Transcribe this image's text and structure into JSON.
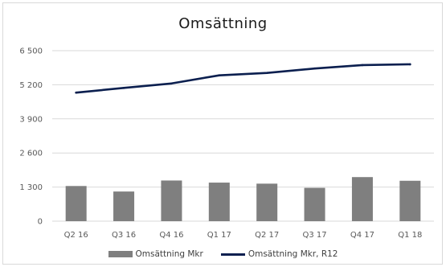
{
  "chart_data": {
    "type": "bar+line",
    "title": "Omsättning",
    "categories": [
      "Q2 16",
      "Q3 16",
      "Q4 16",
      "Q1 17",
      "Q2 17",
      "Q3 17",
      "Q4 17",
      "Q1 18"
    ],
    "series": [
      {
        "name": "Omsättning Mkr",
        "type": "bar",
        "color": "#7f7f7f",
        "values": [
          1340,
          1130,
          1550,
          1470,
          1430,
          1270,
          1680,
          1540
        ]
      },
      {
        "name": "Omsättning Mkr, R12",
        "type": "line",
        "color": "#0b1f4f",
        "values": [
          4900,
          5080,
          5250,
          5560,
          5650,
          5820,
          5950,
          5980
        ]
      }
    ],
    "yticks": [
      "0",
      "1 300",
      "2 600",
      "3 900",
      "5 200",
      "6 500"
    ],
    "ylim": [
      0,
      6500
    ],
    "grid": true,
    "legend_position": "bottom"
  }
}
